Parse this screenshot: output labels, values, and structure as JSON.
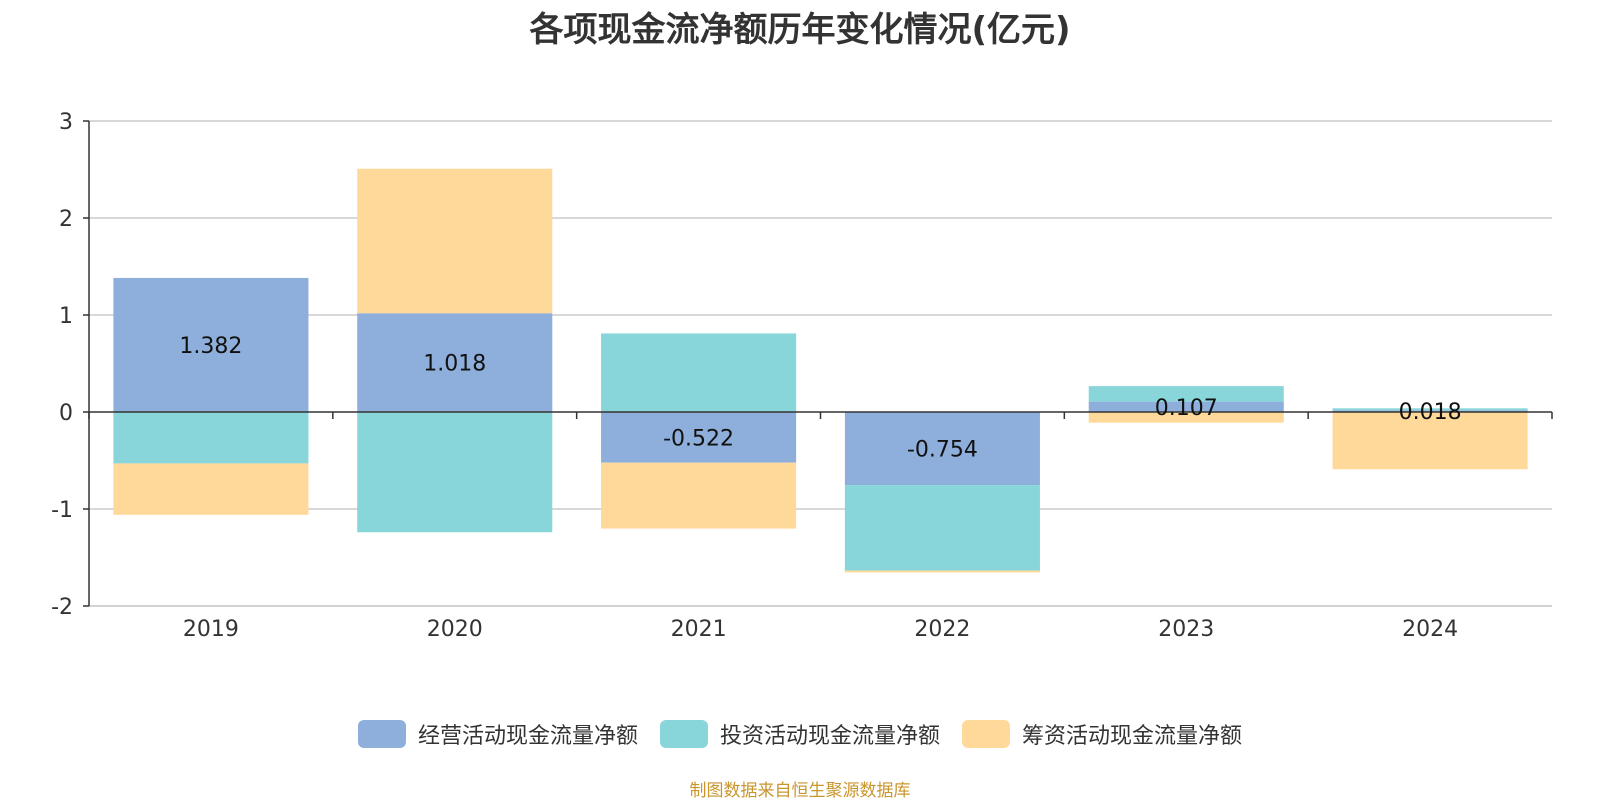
{
  "chart_data": {
    "type": "bar",
    "stacked": true,
    "title": "各项现金流净额历年变化情况(亿元)",
    "xlabel": "",
    "ylabel": "",
    "categories": [
      "2019",
      "2020",
      "2021",
      "2022",
      "2023",
      "2024"
    ],
    "ylim": [
      -2,
      3
    ],
    "yticks": [
      -2,
      -1,
      0,
      1,
      2,
      3
    ],
    "grid": true,
    "legend_position": "bottom",
    "series": [
      {
        "name": "经营活动现金流量净额",
        "color": "#8eaedb",
        "values": [
          1.382,
          1.018,
          -0.522,
          -0.754,
          0.107,
          0.018
        ],
        "labels": [
          "1.382",
          "1.018",
          "-0.522",
          "-0.754",
          "0.107",
          "0.018"
        ]
      },
      {
        "name": "投资活动现金流量净额",
        "color": "#88d6da",
        "values": [
          -0.53,
          -1.24,
          0.81,
          -0.88,
          0.16,
          0.02
        ],
        "labels": []
      },
      {
        "name": "筹资活动现金流量净额",
        "color": "#ffd99a",
        "values": [
          -0.53,
          1.49,
          -0.68,
          -0.02,
          -0.11,
          -0.59
        ],
        "labels": []
      }
    ]
  },
  "source": "制图数据来自恒生聚源数据库"
}
